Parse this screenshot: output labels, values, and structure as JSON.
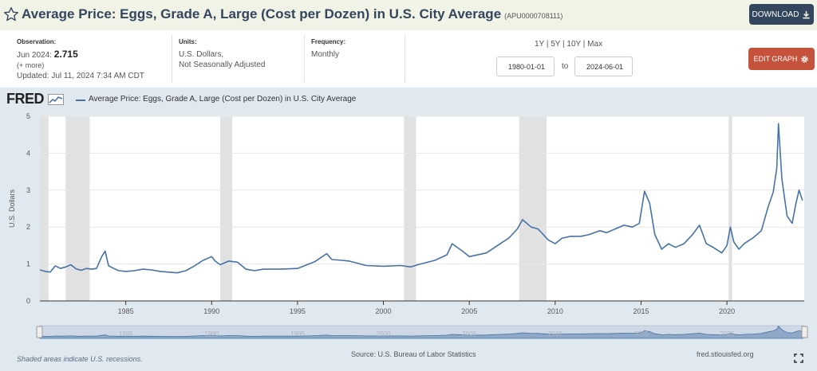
{
  "header": {
    "title": "Average Price: Eggs, Grade A, Large (Cost per Dozen) in U.S. City Average",
    "series_id": "(APU0000708111)",
    "download_label": "DOWNLOAD",
    "title_color": "#33465d",
    "download_color": "#33465d"
  },
  "meta": {
    "observation_label": "Observation:",
    "observation_date": "Jun 2024:",
    "observation_value": "2.715",
    "more_label": "(+ more)",
    "updated": "Updated: Jul 11, 2024 7:34 AM CDT",
    "units_label": "Units:",
    "units_line1": "U.S. Dollars,",
    "units_line2": "Not Seasonally Adjusted",
    "frequency_label": "Frequency:",
    "frequency_value": "Monthly",
    "range_links": "1Y | 5Y | 10Y | Max",
    "start_date": "1980-01-01",
    "to_label": "to",
    "end_date": "2024-06-01",
    "edit_label": "EDIT GRAPH",
    "edit_color": "#c5523b"
  },
  "graph": {
    "logo": "FRED",
    "legend": "Average Price: Eggs, Grade A, Large (Cost per Dozen) in U.S. City Average",
    "footer_left": "Shaded areas indicate U.S. recessions.",
    "footer_source": "Source: U.S. Bureau of Labor Statistics",
    "footer_right": "fred.stlouisfed.org"
  },
  "chart_data": {
    "type": "line",
    "ylabel": "U.S. Dollars",
    "ylim": [
      0,
      5
    ],
    "yticks": [
      0,
      1,
      2,
      3,
      4,
      5
    ],
    "xlim": [
      1980.0,
      2024.5
    ],
    "xticks": [
      1985,
      1990,
      1995,
      2000,
      2005,
      2010,
      2015,
      2020
    ],
    "line_color": "#4572a7",
    "recessions": [
      [
        1980.0,
        1980.5
      ],
      [
        1981.5,
        1982.9
      ],
      [
        1990.5,
        1991.2
      ],
      [
        2001.2,
        2001.9
      ],
      [
        2007.9,
        2009.5
      ],
      [
        2020.1,
        2020.3
      ]
    ],
    "series": [
      {
        "name": "Average Price: Eggs, Grade A, Large (Cost per Dozen) in U.S. City Average",
        "x": [
          1980.0,
          1980.3,
          1980.6,
          1980.9,
          1981.2,
          1981.5,
          1981.8,
          1982.1,
          1982.4,
          1982.7,
          1983.0,
          1983.3,
          1983.6,
          1983.8,
          1984.0,
          1984.3,
          1984.6,
          1985.0,
          1985.5,
          1986.0,
          1986.5,
          1987.0,
          1987.5,
          1988.0,
          1988.5,
          1989.0,
          1989.5,
          1990.0,
          1990.2,
          1990.5,
          1991.0,
          1991.5,
          1992.0,
          1992.5,
          1993.0,
          1994.0,
          1995.0,
          1996.0,
          1996.7,
          1997.0,
          1997.6,
          1998.0,
          1999.0,
          2000.0,
          2001.0,
          2001.6,
          2002.0,
          2003.0,
          2003.7,
          2004.0,
          2004.6,
          2005.0,
          2006.0,
          2006.8,
          2007.3,
          2007.8,
          2008.1,
          2008.6,
          2009.0,
          2009.6,
          2010.0,
          2010.4,
          2010.9,
          2011.5,
          2012.0,
          2012.6,
          2013.0,
          2013.5,
          2014.0,
          2014.5,
          2014.9,
          2015.2,
          2015.5,
          2015.8,
          2016.2,
          2016.6,
          2017.0,
          2017.5,
          2018.0,
          2018.4,
          2018.8,
          2019.2,
          2019.7,
          2020.0,
          2020.2,
          2020.4,
          2020.7,
          2021.0,
          2021.5,
          2022.0,
          2022.4,
          2022.7,
          2022.9,
          2023.0,
          2023.2,
          2023.5,
          2023.8,
          2024.0,
          2024.2,
          2024.4
        ],
        "y": [
          0.84,
          0.8,
          0.78,
          0.95,
          0.88,
          0.92,
          0.98,
          0.87,
          0.83,
          0.88,
          0.86,
          0.88,
          1.2,
          1.35,
          0.95,
          0.88,
          0.82,
          0.8,
          0.82,
          0.86,
          0.84,
          0.8,
          0.78,
          0.76,
          0.82,
          0.95,
          1.1,
          1.2,
          1.08,
          0.98,
          1.08,
          1.05,
          0.86,
          0.82,
          0.86,
          0.86,
          0.88,
          1.06,
          1.28,
          1.12,
          1.1,
          1.08,
          0.96,
          0.94,
          0.96,
          0.92,
          0.98,
          1.1,
          1.25,
          1.55,
          1.35,
          1.2,
          1.3,
          1.55,
          1.7,
          1.95,
          2.2,
          2.0,
          1.95,
          1.65,
          1.55,
          1.7,
          1.75,
          1.75,
          1.8,
          1.9,
          1.85,
          1.95,
          2.05,
          2.0,
          2.1,
          2.97,
          2.65,
          1.8,
          1.4,
          1.55,
          1.45,
          1.55,
          1.8,
          2.05,
          1.55,
          1.45,
          1.3,
          1.5,
          2.0,
          1.6,
          1.4,
          1.55,
          1.7,
          1.9,
          2.55,
          2.95,
          3.6,
          4.8,
          3.3,
          2.3,
          2.1,
          2.6,
          3.0,
          2.72
        ]
      }
    ]
  }
}
